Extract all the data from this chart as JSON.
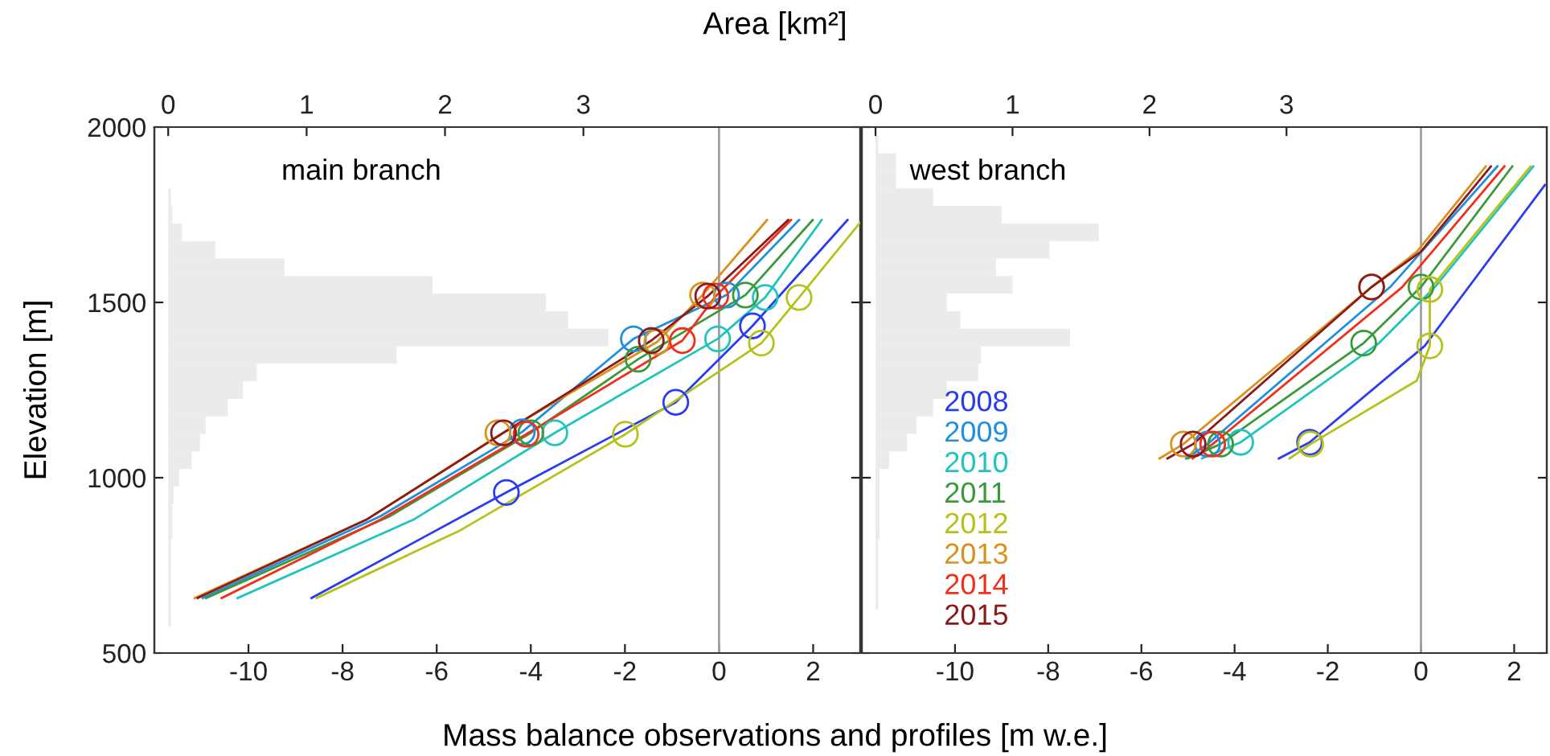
{
  "chart_data": [
    {
      "type": "histogram",
      "orientation": "horizontal",
      "xlabel": "Area [km²]",
      "xlim": [
        -0.1,
        5.0
      ],
      "xticks": [
        0,
        1,
        2,
        3
      ],
      "ylim": [
        500,
        2000
      ],
      "tick_labels": "x",
      "color": "#ebebeb",
      "bins": [
        575,
        625,
        675,
        725,
        775,
        825,
        875,
        925,
        975,
        1025,
        1075,
        1125,
        1175,
        1225,
        1275,
        1325,
        1375,
        1425,
        1475,
        1525,
        1575,
        1625,
        1675,
        1725,
        1775,
        1825
      ],
      "values": [
        0.02,
        0.02,
        0.02,
        0.02,
        0.02,
        0.03,
        0.03,
        0.04,
        0.08,
        0.17,
        0.23,
        0.27,
        0.43,
        0.54,
        0.64,
        1.65,
        3.18,
        2.89,
        2.73,
        1.91,
        0.84,
        0.34,
        0.1,
        0.03,
        0.02
      ]
    },
    {
      "type": "line",
      "title": "main branch",
      "xlabel": "Mass balance observations and profiles [m w.e.]",
      "ylabel": "Elevation [m]",
      "xlim": [
        -12,
        3
      ],
      "xticks": [
        -10,
        -8,
        -6,
        -4,
        -2,
        0,
        2
      ],
      "ylim": [
        500,
        2000
      ],
      "yticks": [
        500,
        1000,
        1500,
        2000
      ],
      "ref_lines": [
        {
          "axis": "x",
          "value": 0,
          "color": "#a0a0a0"
        }
      ],
      "series": [
        {
          "type": "line",
          "color": "#2a3cf0",
          "x": [
            -8.66,
            -4.52,
            -0.92,
            0.71,
            2.73
          ],
          "values": [
            657,
            958,
            1215,
            1433,
            1735
          ]
        },
        {
          "type": "line",
          "color": "#1f8fe0",
          "x": [
            -10.97,
            -7.2,
            -4.18,
            -1.82,
            0.16,
            1.7
          ],
          "values": [
            657,
            890,
            1131,
            1396,
            1521,
            1735
          ]
        },
        {
          "type": "line",
          "color": "#21c4bd",
          "x": [
            -10.23,
            -6.5,
            -3.49,
            -0.03,
            0.98,
            2.18
          ],
          "values": [
            657,
            880,
            1128,
            1396,
            1514,
            1735
          ]
        },
        {
          "type": "line",
          "color": "#3a9a3a",
          "x": [
            -10.9,
            -7.0,
            -4.0,
            -1.72,
            0.56,
            1.99
          ],
          "values": [
            657,
            890,
            1128,
            1338,
            1521,
            1735
          ]
        },
        {
          "type": "line",
          "color": "#b5c21c",
          "x": [
            -8.55,
            -5.5,
            -1.99,
            0.9,
            1.7,
            3.0
          ],
          "values": [
            657,
            850,
            1124,
            1384,
            1514,
            1728
          ]
        },
        {
          "type": "line",
          "color": "#d9901c",
          "x": [
            -11.14,
            -7.5,
            -4.6,
            -1.32,
            -0.35,
            1.02
          ],
          "values": [
            657,
            880,
            1128,
            1387,
            1521,
            1735
          ]
        },
        {
          "type": "line",
          "color": "#f0301c",
          "x": [
            -10.57,
            -7.2,
            -4.1,
            -0.78,
            -0.07,
            1.53
          ],
          "values": [
            657,
            880,
            1124,
            1391,
            1518,
            1735
          ]
        },
        {
          "type": "line",
          "color": "#8b1a1a",
          "x": [
            -11.08,
            -7.5,
            -4.58,
            -1.44,
            -0.24,
            1.47
          ],
          "values": [
            657,
            880,
            1128,
            1391,
            1518,
            1735
          ]
        },
        {
          "type": "scatter",
          "marker": "circle",
          "color": "#2a3cf0",
          "x": [
            -4.52,
            -0.92,
            0.71
          ],
          "values": [
            958,
            1215,
            1433
          ]
        },
        {
          "type": "scatter",
          "marker": "circle",
          "color": "#1f8fe0",
          "x": [
            -4.18,
            -1.82,
            0.16
          ],
          "values": [
            1131,
            1396,
            1521
          ]
        },
        {
          "type": "scatter",
          "marker": "circle",
          "color": "#21c4bd",
          "x": [
            -3.49,
            -0.03,
            0.98
          ],
          "values": [
            1128,
            1396,
            1514
          ]
        },
        {
          "type": "scatter",
          "marker": "circle",
          "color": "#3a9a3a",
          "x": [
            -4.0,
            -1.72,
            0.56
          ],
          "values": [
            1128,
            1338,
            1521
          ]
        },
        {
          "type": "scatter",
          "marker": "circle",
          "color": "#b5c21c",
          "x": [
            -1.99,
            0.9,
            1.7
          ],
          "values": [
            1124,
            1384,
            1514
          ]
        },
        {
          "type": "scatter",
          "marker": "circle",
          "color": "#d9901c",
          "x": [
            -4.7,
            -1.32,
            -0.35
          ],
          "values": [
            1128,
            1387,
            1521
          ]
        },
        {
          "type": "scatter",
          "marker": "circle",
          "color": "#f0301c",
          "x": [
            -4.1,
            -0.78,
            -0.07
          ],
          "values": [
            1124,
            1391,
            1518
          ]
        },
        {
          "type": "scatter",
          "marker": "circle",
          "color": "#8b1a1a",
          "x": [
            -4.58,
            -1.44,
            -0.24
          ],
          "values": [
            1128,
            1391,
            1518
          ]
        }
      ]
    },
    {
      "type": "histogram",
      "orientation": "horizontal",
      "xlim": [
        -0.1,
        4.9
      ],
      "xticks": [
        0,
        1,
        2,
        3
      ],
      "ylim": [
        500,
        2000
      ],
      "tick_labels": "x",
      "color": "#ebebeb",
      "bins": [
        625,
        675,
        725,
        775,
        825,
        875,
        925,
        975,
        1025,
        1075,
        1125,
        1175,
        1225,
        1275,
        1325,
        1375,
        1425,
        1475,
        1525,
        1575,
        1625,
        1675,
        1725,
        1775,
        1825,
        1875,
        1925,
        1975
      ],
      "values": [
        0.02,
        0.02,
        0.02,
        0.02,
        0.03,
        0.03,
        0.03,
        0.03,
        0.1,
        0.23,
        0.3,
        0.42,
        0.52,
        0.75,
        0.77,
        1.42,
        0.62,
        0.52,
        1.0,
        0.88,
        1.27,
        1.63,
        0.92,
        0.42,
        0.15,
        0.15,
        0.02
      ]
    },
    {
      "type": "line",
      "title": "west branch",
      "xlim": [
        -12,
        2.7
      ],
      "xticks": [
        -10,
        -8,
        -6,
        -4,
        -2,
        0,
        2
      ],
      "ylim": [
        500,
        2000
      ],
      "yticks": [
        500,
        1000,
        1500,
        2000
      ],
      "tick_labels": "x",
      "legend": "bottom left",
      "ref_lines": [
        {
          "axis": "x",
          "value": 0,
          "color": "#a0a0a0"
        }
      ],
      "series": [
        {
          "type": "line",
          "name": "2008",
          "color": "#2a3cf0",
          "x": [
            -3.05,
            -2.39,
            0.08,
            2.66
          ],
          "values": [
            1055,
            1101,
            1376,
            1835
          ]
        },
        {
          "type": "line",
          "name": "2009",
          "color": "#1f8fe0",
          "x": [
            -5.04,
            -4.58,
            -0.66,
            1.64
          ],
          "values": [
            1055,
            1096,
            1544,
            1888
          ]
        },
        {
          "type": "line",
          "name": "2010",
          "color": "#21c4bd",
          "x": [
            -4.7,
            -3.87,
            -0.9,
            0.3,
            2.41
          ],
          "values": [
            1055,
            1101,
            1384,
            1544,
            1888
          ]
        },
        {
          "type": "line",
          "name": "2011",
          "color": "#3a9a3a",
          "x": [
            -5.0,
            -4.3,
            -1.23,
            0.0,
            1.96
          ],
          "values": [
            1055,
            1096,
            1384,
            1544,
            1888
          ]
        },
        {
          "type": "line",
          "name": "2012",
          "color": "#b5c21c",
          "x": [
            -2.82,
            -2.37,
            -0.09,
            0.19,
            0.19,
            2.35
          ],
          "values": [
            1055,
            1096,
            1277,
            1376,
            1537,
            1888
          ]
        },
        {
          "type": "line",
          "name": "2013",
          "color": "#d9901c",
          "x": [
            -5.61,
            -5.1,
            -1.06,
            -0.09,
            1.39
          ],
          "values": [
            1055,
            1096,
            1544,
            1644,
            1888
          ]
        },
        {
          "type": "line",
          "name": "2014",
          "color": "#f0301c",
          "x": [
            -4.9,
            -4.47,
            -0.4,
            1.79
          ],
          "values": [
            1055,
            1096,
            1544,
            1888
          ]
        },
        {
          "type": "line",
          "name": "2015",
          "color": "#8b1a1a",
          "x": [
            -5.44,
            -4.89,
            -1.06,
            0.0,
            1.5
          ],
          "values": [
            1055,
            1096,
            1544,
            1645,
            1888
          ]
        },
        {
          "type": "scatter",
          "marker": "circle",
          "color": "#2a3cf0",
          "x": [
            -2.39
          ],
          "values": [
            1101
          ]
        },
        {
          "type": "scatter",
          "marker": "circle",
          "color": "#1f8fe0",
          "x": [
            -4.58
          ],
          "values": [
            1096
          ]
        },
        {
          "type": "scatter",
          "marker": "circle",
          "color": "#21c4bd",
          "x": [
            -3.87
          ],
          "values": [
            1101
          ]
        },
        {
          "type": "scatter",
          "marker": "circle",
          "color": "#3a9a3a",
          "x": [
            -4.3,
            -1.23,
            0.0
          ],
          "values": [
            1096,
            1384,
            1544
          ]
        },
        {
          "type": "scatter",
          "marker": "circle",
          "color": "#b5c21c",
          "x": [
            -2.37,
            0.19,
            0.19
          ],
          "values": [
            1096,
            1376,
            1537
          ]
        },
        {
          "type": "scatter",
          "marker": "circle",
          "color": "#d9901c",
          "x": [
            -5.1,
            -1.06
          ],
          "values": [
            1096,
            1544
          ]
        },
        {
          "type": "scatter",
          "marker": "circle",
          "color": "#f0301c",
          "x": [
            -4.47
          ],
          "values": [
            1096
          ]
        },
        {
          "type": "scatter",
          "marker": "circle",
          "color": "#8b1a1a",
          "x": [
            -4.89,
            -1.06
          ],
          "values": [
            1096,
            1544
          ]
        }
      ]
    }
  ]
}
